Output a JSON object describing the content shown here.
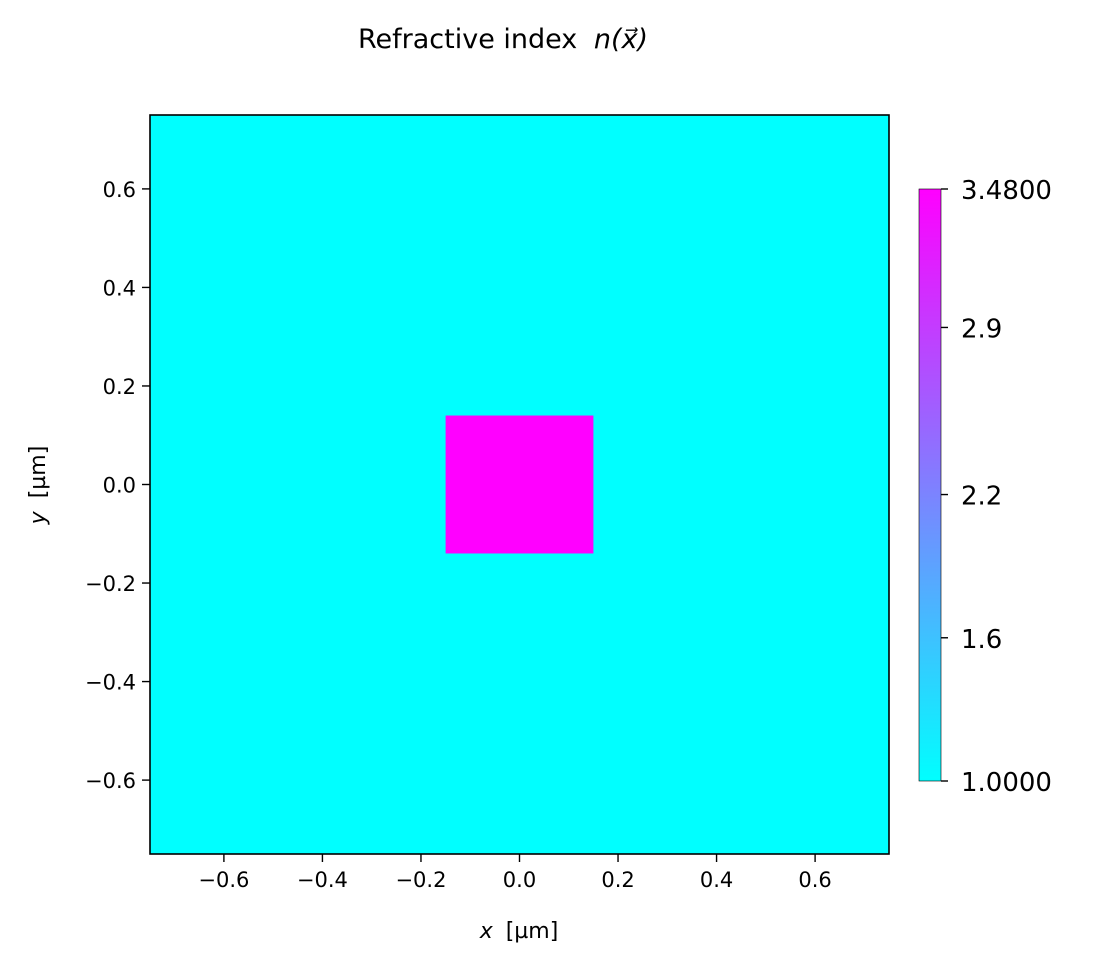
{
  "chart_data": {
    "type": "heatmap",
    "title": "Refractive index",
    "title_math": "n(x⃗)",
    "xlabel_var": "x",
    "xlabel_unit": "[µm]",
    "ylabel_var": "y",
    "ylabel_unit": "[µm]",
    "xlim": [
      -0.75,
      0.75
    ],
    "ylim": [
      -0.75,
      0.75
    ],
    "x_ticks": [
      -0.6,
      -0.4,
      -0.2,
      0.0,
      0.2,
      0.4,
      0.6
    ],
    "y_ticks": [
      -0.6,
      -0.4,
      -0.2,
      0.0,
      0.2,
      0.4,
      0.6
    ],
    "x_tick_labels": [
      "−0.6",
      "−0.4",
      "−0.2",
      "0.0",
      "0.2",
      "0.4",
      "0.6"
    ],
    "y_tick_labels": [
      "−0.6",
      "−0.4",
      "−0.2",
      "0.0",
      "0.2",
      "0.4",
      "0.6"
    ],
    "background_value": 1.0,
    "regions": [
      {
        "x_range": [
          -0.15,
          0.15
        ],
        "y_range": [
          -0.14,
          0.14
        ],
        "value": 3.48
      }
    ],
    "colormap": "cool",
    "colormap_start": "#00ffff",
    "colormap_end": "#ff00ff",
    "colorbar": {
      "min": 1.0,
      "max": 3.48,
      "ticks": [
        1.0,
        1.6,
        2.2,
        2.9,
        3.48
      ],
      "tick_labels": [
        "1.0000",
        "1.6",
        "2.2",
        "2.9",
        "3.4800"
      ]
    },
    "grid": false
  }
}
